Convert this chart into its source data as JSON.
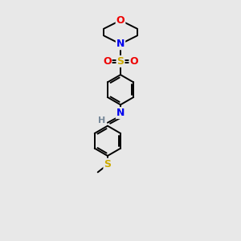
{
  "background_color": "#e8e8e8",
  "bond_color": "#000000",
  "bond_width": 1.4,
  "atom_colors": {
    "C": "#000000",
    "N": "#0000ee",
    "O": "#ee0000",
    "S_sulfonyl": "#ccaa00",
    "S_thio": "#ccaa00",
    "H": "#778899"
  },
  "figsize": [
    3.0,
    3.0
  ],
  "dpi": 100,
  "xlim": [
    0,
    10
  ],
  "ylim": [
    0,
    15
  ]
}
